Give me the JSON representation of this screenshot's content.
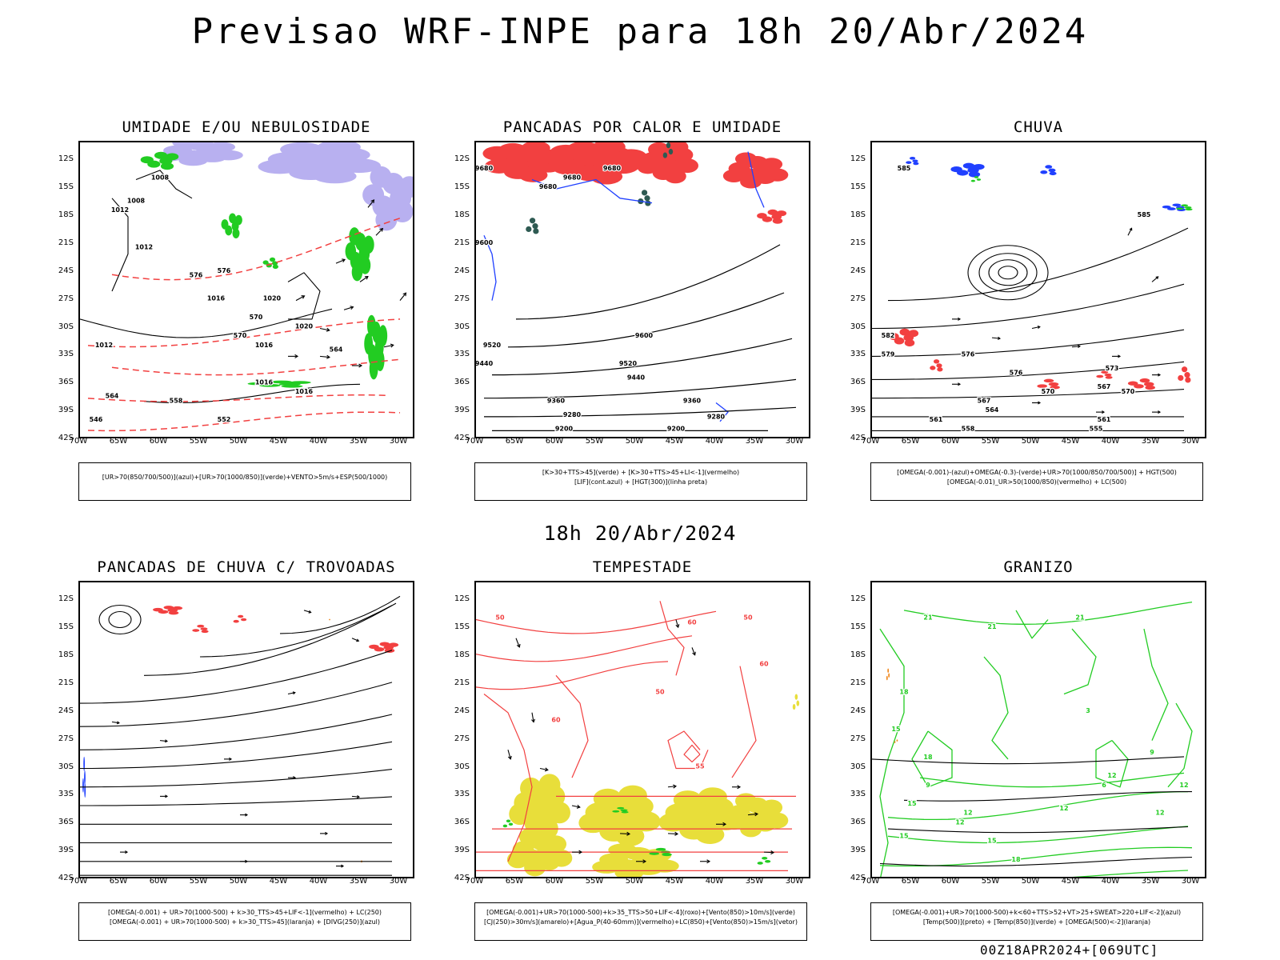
{
  "header": {
    "title": "Previsao WRF-INPE  para 18h 20/Abr/2024"
  },
  "mid": {
    "title": "18h 20/Abr/2024"
  },
  "footer": {
    "run": "00Z18APR2024+[069UTC]"
  },
  "axes": {
    "lat_labels": [
      "12S",
      "15S",
      "18S",
      "21S",
      "24S",
      "27S",
      "30S",
      "33S",
      "36S",
      "39S",
      "42S"
    ],
    "lon_labels": [
      "70W",
      "65W",
      "60W",
      "55W",
      "50W",
      "45W",
      "40W",
      "35W",
      "30W"
    ]
  },
  "colors": {
    "red": "#f24040",
    "green": "#22cc22",
    "blue": "#2040ff",
    "lavender": "#b8b0f0",
    "yellow": "#e8de3a",
    "darkteal": "#2e5a52",
    "orange": "#f08a20",
    "black": "#000000"
  },
  "panels": [
    {
      "id": "umidade",
      "title": "UMIDADE E/OU NEBULOSIDADE",
      "legend": [
        "[UR>70(850/700/500)](azul)+[UR>70(1000/850)](verde)+VENTO>5m/s+ESP(500/1000)"
      ],
      "labels": [
        "1008",
        "1008",
        "1012",
        "1012",
        "1016",
        "1016",
        "1020",
        "1020",
        "1016",
        "1016",
        "1012",
        "576",
        "576",
        "570",
        "570",
        "564",
        "564",
        "558",
        "552",
        "546"
      ]
    },
    {
      "id": "pancadas-calor",
      "title": "PANCADAS POR CALOR E UMIDADE",
      "legend": [
        "[K>30+TTS>45](verde) + [K>30+TTS>45+LI<-1](vermelho)",
        "[LIF](cont.azul) + [HGT(300)](linha preta)"
      ],
      "labels": [
        "9680",
        "9680",
        "9680",
        "9680",
        "9600",
        "9600",
        "9520",
        "9520",
        "9440",
        "9440",
        "9360",
        "9360",
        "9280",
        "9280",
        "9200",
        "9200"
      ]
    },
    {
      "id": "chuva",
      "title": "CHUVA",
      "legend": [
        "[OMEGA(-0.001)-(azul)+OMEGA(-0.3)-(verde)+UR>70(1000/850/700/500)] + HGT(500)",
        "[OMEGA(-0.01)_UR>50(1000/850)(vermelho) + LC(500)"
      ],
      "labels": [
        "585",
        "585",
        "582",
        "579",
        "576",
        "576",
        "573",
        "570",
        "570",
        "567",
        "567",
        "564",
        "561",
        "561",
        "558",
        "555"
      ]
    },
    {
      "id": "trovoadas",
      "title": "PANCADAS DE CHUVA C/ TROVOADAS",
      "legend": [
        "[OMEGA(-0.001) + UR>70(1000-500) + k>30_TTS>45+LIF<-1](vermelho) + LC(250)",
        "[OMEGA(-0.001) + UR>70(1000-500) + k>30_TTS>45](laranja) + [DIVG(250)](azul)"
      ],
      "labels": []
    },
    {
      "id": "tempestade",
      "title": "TEMPESTADE",
      "legend": [
        "[OMEGA(-0.001)+UR>70(1000-500)+k>35_TTS>50+LIF<-4](roxo)+[Vento(850)>10m/s](verde)",
        "[CJ(250)>30m/s](amarelo)+[Agua_P(40-60mm)](vermelho)+LC(850)+[Vento(850)>15m/s](vetor)"
      ],
      "labels": [
        "50",
        "60",
        "50",
        "60",
        "50",
        "60",
        "55"
      ]
    },
    {
      "id": "granizo",
      "title": "GRANIZO",
      "legend": [
        "[OMEGA(-0.001)+UR>70(1000-500)+k<60+TTS>52+VT>25+SWEAT>220+LIF<-2](azul)",
        "[Temp(500)](preto) + [Temp(850)](verde) + [OMEGA(500)<-2](laranja)"
      ],
      "labels": [
        "21",
        "21",
        "21",
        "18",
        "18",
        "15",
        "15",
        "12",
        "12",
        "9",
        "9",
        "12",
        "12",
        "15",
        "18",
        "6",
        "3",
        "15",
        "12",
        "12"
      ]
    }
  ]
}
